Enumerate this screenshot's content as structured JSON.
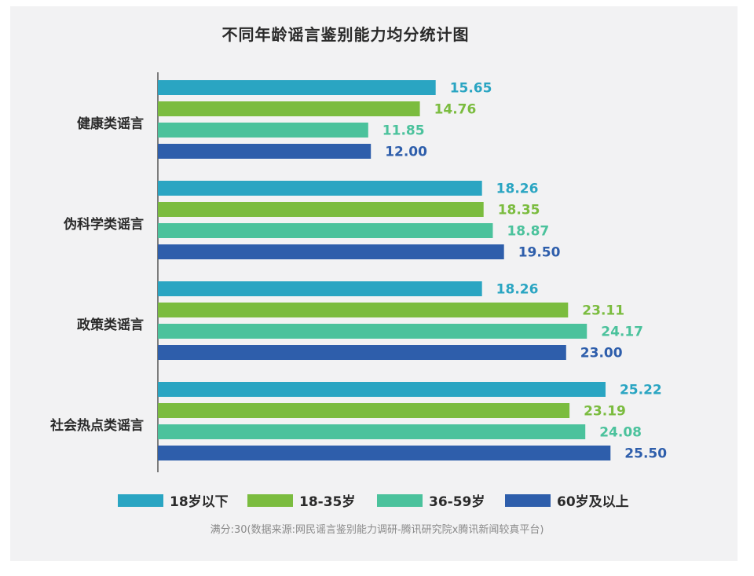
{
  "chart_data": {
    "type": "bar",
    "orientation": "horizontal",
    "title": "不同年龄谣言鉴别能力均分统计图",
    "categories": [
      "健康类谣言",
      "伪科学类谣言",
      "政策类谣言",
      "社会热点类谣言"
    ],
    "series": [
      {
        "name": "18岁以下",
        "color": "#2aa5c2",
        "values": [
          15.65,
          18.26,
          18.26,
          25.22
        ],
        "labels": [
          "15.65",
          "18.26",
          "18.26",
          "25.22"
        ]
      },
      {
        "name": "18-35岁",
        "color": "#7bbc3f",
        "values": [
          14.76,
          18.35,
          23.11,
          23.19
        ],
        "labels": [
          "14.76",
          "18.35",
          "23.11",
          "23.19"
        ]
      },
      {
        "name": "36-59岁",
        "color": "#4bc29c",
        "values": [
          11.85,
          18.87,
          24.17,
          24.08
        ],
        "labels": [
          "11.85",
          "18.87",
          "24.17",
          "24.08"
        ]
      },
      {
        "name": "60岁及以上",
        "color": "#2e5eab",
        "values": [
          12.0,
          19.5,
          23.0,
          25.5
        ],
        "labels": [
          "12.00",
          "19.50",
          "23.00",
          "25.50"
        ]
      }
    ],
    "xlim": [
      0,
      30
    ],
    "grid": false,
    "legend_position": "bottom"
  },
  "footnote": "满分:30(数据来源:网民谣言鉴别能力调研-腾讯研究院x腾讯新闻较真平台)"
}
